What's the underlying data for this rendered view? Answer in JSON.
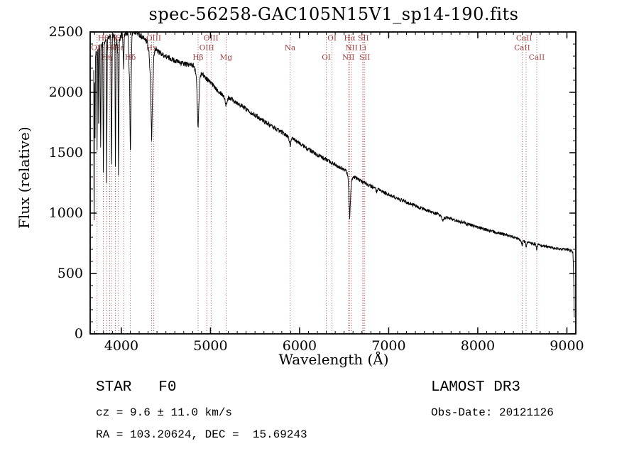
{
  "title": "spec-56258-GAC105N15V1_sp14-190.fits",
  "annotations": {
    "object_type": "STAR   F0",
    "survey": "LAMOST DR3",
    "cz": "cz = 9.6 ± 11.0 km/s",
    "obs_date": "Obs-Date: 20121126",
    "ra_dec": "RA = 103.20624, DEC =  15.69243"
  },
  "chart_data": {
    "type": "line",
    "title": "spec-56258-GAC105N15V1_sp14-190.fits",
    "xlabel": "Wavelength (Å)",
    "ylabel": "Flux (relative)",
    "xlim": [
      3650,
      9100
    ],
    "ylim": [
      0,
      2500
    ],
    "xticks": [
      4000,
      5000,
      6000,
      7000,
      8000,
      9000
    ],
    "yticks": [
      0,
      500,
      1000,
      1500,
      2000,
      2500
    ],
    "x_minor_step": 100,
    "y_minor_step": 100,
    "grid": false,
    "line_color": "#000000",
    "marker_color": "#a03c3c",
    "noise_seed": 1234,
    "noise_coeff": 0.45,
    "sample_step": 2.5,
    "spectral_lines": [
      3727,
      3798,
      3835,
      3869,
      3889,
      3933,
      3968,
      4026,
      4101,
      4340,
      4363,
      4861,
      4959,
      5007,
      5175,
      5893,
      6300,
      6364,
      6548,
      6563,
      6583,
      6708,
      6717,
      6731,
      8498,
      8542,
      8662
    ],
    "line_labels": [
      {
        "label": "Hθ",
        "wl": 3798,
        "row": 0
      },
      {
        "label": "K",
        "wl": 3933,
        "row": 0
      },
      {
        "label": "H",
        "wl": 3969,
        "row": 0
      },
      {
        "label": "OIII",
        "wl": 4363,
        "row": 0
      },
      {
        "label": "OIII",
        "wl": 5007,
        "row": 0
      },
      {
        "label": "OI",
        "wl": 6364,
        "row": 0
      },
      {
        "label": "Hα",
        "wl": 6563,
        "row": 0
      },
      {
        "label": "SII",
        "wl": 6717,
        "row": 0
      },
      {
        "label": "CaII",
        "wl": 8520,
        "row": 0
      },
      {
        "label": "OII",
        "wl": 3727,
        "row": 1
      },
      {
        "label": "Hζ",
        "wl": 3889,
        "row": 1
      },
      {
        "label": "Hε",
        "wl": 3975,
        "row": 1
      },
      {
        "label": "Hγ",
        "wl": 4340,
        "row": 1
      },
      {
        "label": "OIII",
        "wl": 4959,
        "row": 1
      },
      {
        "label": "Na",
        "wl": 5893,
        "row": 1
      },
      {
        "label": "NII",
        "wl": 6583,
        "row": 1
      },
      {
        "label": "Li",
        "wl": 6708,
        "row": 1
      },
      {
        "label": "CaII",
        "wl": 8498,
        "row": 1
      },
      {
        "label": "Hη",
        "wl": 3835,
        "row": 2
      },
      {
        "label": "Hδ",
        "wl": 4101,
        "row": 2
      },
      {
        "label": "Hβ",
        "wl": 4861,
        "row": 2
      },
      {
        "label": "Mg",
        "wl": 5175,
        "row": 2
      },
      {
        "label": "OI",
        "wl": 6300,
        "row": 2
      },
      {
        "label": "NII",
        "wl": 6548,
        "row": 2
      },
      {
        "label": "SII",
        "wl": 6731,
        "row": 2
      },
      {
        "label": "CaII",
        "wl": 8662,
        "row": 2
      }
    ],
    "spectrum_anchors": [
      [
        3690,
        2200
      ],
      [
        3694,
        600
      ],
      [
        3699,
        2250
      ],
      [
        3704,
        1500
      ],
      [
        3710,
        2300
      ],
      [
        3716,
        2350
      ],
      [
        3722,
        2300
      ],
      [
        3727,
        1450
      ],
      [
        3733,
        2320
      ],
      [
        3740,
        2350
      ],
      [
        3746,
        1600
      ],
      [
        3753,
        2350
      ],
      [
        3760,
        2380
      ],
      [
        3768,
        1500
      ],
      [
        3776,
        2380
      ],
      [
        3790,
        2400
      ],
      [
        3798,
        1280
      ],
      [
        3807,
        2400
      ],
      [
        3820,
        2430
      ],
      [
        3830,
        2430
      ],
      [
        3835,
        1250
      ],
      [
        3843,
        2430
      ],
      [
        3860,
        2450
      ],
      [
        3880,
        2460
      ],
      [
        3889,
        1300
      ],
      [
        3899,
        2460
      ],
      [
        3915,
        2470
      ],
      [
        3927,
        2460
      ],
      [
        3933,
        1270
      ],
      [
        3941,
        2380
      ],
      [
        3950,
        2430
      ],
      [
        3961,
        2300
      ],
      [
        3968,
        1250
      ],
      [
        3977,
        2430
      ],
      [
        3995,
        2470
      ],
      [
        4010,
        2490
      ],
      [
        4021,
        2320
      ],
      [
        4026,
        2180
      ],
      [
        4033,
        2470
      ],
      [
        4050,
        2490
      ],
      [
        4075,
        2490
      ],
      [
        4093,
        2050
      ],
      [
        4101,
        1450
      ],
      [
        4110,
        2050
      ],
      [
        4119,
        2480
      ],
      [
        4140,
        2500
      ],
      [
        4165,
        2495
      ],
      [
        4190,
        2485
      ],
      [
        4215,
        2470
      ],
      [
        4240,
        2455
      ],
      [
        4265,
        2440
      ],
      [
        4290,
        2410
      ],
      [
        4310,
        2330
      ],
      [
        4326,
        2100
      ],
      [
        4340,
        1600
      ],
      [
        4352,
        2050
      ],
      [
        4365,
        2300
      ],
      [
        4382,
        2360
      ],
      [
        4400,
        2350
      ],
      [
        4430,
        2330
      ],
      [
        4460,
        2315
      ],
      [
        4490,
        2300
      ],
      [
        4520,
        2290
      ],
      [
        4550,
        2280
      ],
      [
        4580,
        2270
      ],
      [
        4610,
        2260
      ],
      [
        4640,
        2252
      ],
      [
        4670,
        2244
      ],
      [
        4700,
        2238
      ],
      [
        4730,
        2232
      ],
      [
        4760,
        2230
      ],
      [
        4790,
        2226
      ],
      [
        4815,
        2222
      ],
      [
        4840,
        2150
      ],
      [
        4852,
        1900
      ],
      [
        4861,
        1680
      ],
      [
        4870,
        1900
      ],
      [
        4882,
        2120
      ],
      [
        4900,
        2160
      ],
      [
        4930,
        2135
      ],
      [
        4960,
        2110
      ],
      [
        4990,
        2090
      ],
      [
        5020,
        2065
      ],
      [
        5050,
        2042
      ],
      [
        5080,
        2020
      ],
      [
        5110,
        2000
      ],
      [
        5140,
        1978
      ],
      [
        5160,
        1950
      ],
      [
        5175,
        1890
      ],
      [
        5188,
        1930
      ],
      [
        5205,
        1958
      ],
      [
        5235,
        1948
      ],
      [
        5265,
        1932
      ],
      [
        5295,
        1916
      ],
      [
        5325,
        1900
      ],
      [
        5355,
        1884
      ],
      [
        5385,
        1869
      ],
      [
        5415,
        1854
      ],
      [
        5445,
        1839
      ],
      [
        5475,
        1824
      ],
      [
        5505,
        1810
      ],
      [
        5535,
        1795
      ],
      [
        5565,
        1780
      ],
      [
        5595,
        1765
      ],
      [
        5625,
        1750
      ],
      [
        5655,
        1736
      ],
      [
        5685,
        1721
      ],
      [
        5715,
        1707
      ],
      [
        5745,
        1693
      ],
      [
        5775,
        1680
      ],
      [
        5805,
        1667
      ],
      [
        5835,
        1654
      ],
      [
        5862,
        1640
      ],
      [
        5884,
        1605
      ],
      [
        5893,
        1555
      ],
      [
        5904,
        1600
      ],
      [
        5925,
        1615
      ],
      [
        5955,
        1600
      ],
      [
        5985,
        1585
      ],
      [
        6015,
        1570
      ],
      [
        6045,
        1555
      ],
      [
        6075,
        1540
      ],
      [
        6105,
        1526
      ],
      [
        6135,
        1512
      ],
      [
        6165,
        1498
      ],
      [
        6195,
        1485
      ],
      [
        6225,
        1472
      ],
      [
        6255,
        1460
      ],
      [
        6285,
        1448
      ],
      [
        6315,
        1436
      ],
      [
        6345,
        1424
      ],
      [
        6375,
        1412
      ],
      [
        6405,
        1400
      ],
      [
        6435,
        1388
      ],
      [
        6465,
        1375
      ],
      [
        6495,
        1362
      ],
      [
        6520,
        1350
      ],
      [
        6543,
        1310
      ],
      [
        6555,
        1120
      ],
      [
        6563,
        950
      ],
      [
        6571,
        1120
      ],
      [
        6584,
        1280
      ],
      [
        6610,
        1300
      ],
      [
        6640,
        1287
      ],
      [
        6670,
        1274
      ],
      [
        6700,
        1262
      ],
      [
        6730,
        1250
      ],
      [
        6760,
        1238
      ],
      [
        6790,
        1227
      ],
      [
        6820,
        1216
      ],
      [
        6850,
        1205
      ],
      [
        6866,
        1170
      ],
      [
        6880,
        1195
      ],
      [
        6910,
        1184
      ],
      [
        6940,
        1173
      ],
      [
        6970,
        1162
      ],
      [
        7000,
        1152
      ],
      [
        7050,
        1136
      ],
      [
        7100,
        1120
      ],
      [
        7150,
        1105
      ],
      [
        7200,
        1090
      ],
      [
        7250,
        1075
      ],
      [
        7300,
        1060
      ],
      [
        7350,
        1046
      ],
      [
        7400,
        1032
      ],
      [
        7450,
        1018
      ],
      [
        7500,
        1005
      ],
      [
        7550,
        992
      ],
      [
        7588,
        968
      ],
      [
        7605,
        935
      ],
      [
        7622,
        958
      ],
      [
        7660,
        962
      ],
      [
        7700,
        952
      ],
      [
        7750,
        941
      ],
      [
        7800,
        930
      ],
      [
        7850,
        918
      ],
      [
        7900,
        906
      ],
      [
        7950,
        894
      ],
      [
        8000,
        883
      ],
      [
        8050,
        872
      ],
      [
        8100,
        861
      ],
      [
        8150,
        851
      ],
      [
        8200,
        841
      ],
      [
        8250,
        831
      ],
      [
        8300,
        821
      ],
      [
        8350,
        811
      ],
      [
        8400,
        801
      ],
      [
        8450,
        791
      ],
      [
        8485,
        775
      ],
      [
        8498,
        730
      ],
      [
        8510,
        768
      ],
      [
        8530,
        765
      ],
      [
        8542,
        718
      ],
      [
        8556,
        760
      ],
      [
        8585,
        754
      ],
      [
        8615,
        748
      ],
      [
        8645,
        744
      ],
      [
        8662,
        700
      ],
      [
        8676,
        738
      ],
      [
        8705,
        732
      ],
      [
        8745,
        726
      ],
      [
        8785,
        720
      ],
      [
        8825,
        714
      ],
      [
        8865,
        709
      ],
      [
        8905,
        705
      ],
      [
        8945,
        701
      ],
      [
        8985,
        698
      ],
      [
        9020,
        695
      ],
      [
        9050,
        690
      ],
      [
        9068,
        665
      ],
      [
        9078,
        420
      ],
      [
        9084,
        40
      ]
    ]
  }
}
